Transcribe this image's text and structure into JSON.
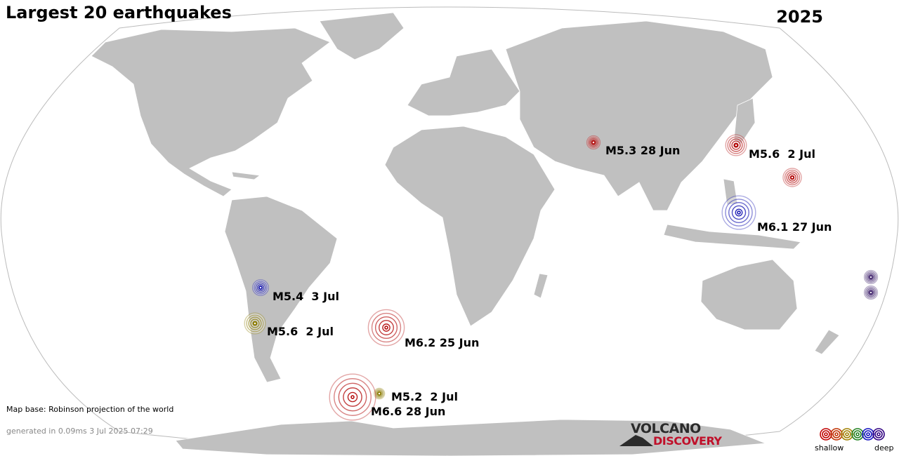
{
  "header": {
    "title": "Largest 20 earthquakes",
    "year": "2025"
  },
  "map": {
    "land_color": "#c0c0c0",
    "ocean_color": "#ffffff",
    "border_color": "#ffffff"
  },
  "depth_colors": {
    "shallow": "#b00000",
    "intermediate": "#8a7a00",
    "deep_medium": "#1010b0",
    "deep": "#301060"
  },
  "earthquakes": [
    {
      "label": "M5.3 28 Jun",
      "magnitude": 5.3,
      "date": "28 Jun",
      "depth": "shallow"
    },
    {
      "label": "M5.6  2 Jul",
      "magnitude": 5.6,
      "date": "2 Jul",
      "depth": "shallow"
    },
    {
      "label": "",
      "magnitude": 5.5,
      "date": "",
      "depth": "shallow"
    },
    {
      "label": "M6.1 27 Jun",
      "magnitude": 6.1,
      "date": "27 Jun",
      "depth": "deep_medium"
    },
    {
      "label": "",
      "magnitude": 5.3,
      "date": "",
      "depth": "deep"
    },
    {
      "label": "",
      "magnitude": 5.3,
      "date": "",
      "depth": "deep"
    },
    {
      "label": "M5.4  3 Jul",
      "magnitude": 5.4,
      "date": "3 Jul",
      "depth": "deep_medium"
    },
    {
      "label": "M5.6  2 Jul",
      "magnitude": 5.6,
      "date": "2 Jul",
      "depth": "intermediate"
    },
    {
      "label": "M6.2 25 Jun",
      "magnitude": 6.2,
      "date": "25 Jun",
      "depth": "shallow"
    },
    {
      "label": "M5.2  2 Jul",
      "magnitude": 5.2,
      "date": "2 Jul",
      "depth": "intermediate"
    },
    {
      "label": "M6.6 28 Jun",
      "magnitude": 6.6,
      "date": "28 Jun",
      "depth": "shallow"
    }
  ],
  "footer": {
    "map_base": "Map base: Robinson projection of the world",
    "generated": "generated in 0.09ms  3 Jul 2025 07:29"
  },
  "logo": {
    "top": "VOLCANO",
    "bottom": "DISCOVERY"
  },
  "legend": {
    "shallow_label": "shallow",
    "deep_label": "deep",
    "colors": [
      "#c00000",
      "#c03000",
      "#a08000",
      "#208020",
      "#1010c0",
      "#300080"
    ]
  }
}
